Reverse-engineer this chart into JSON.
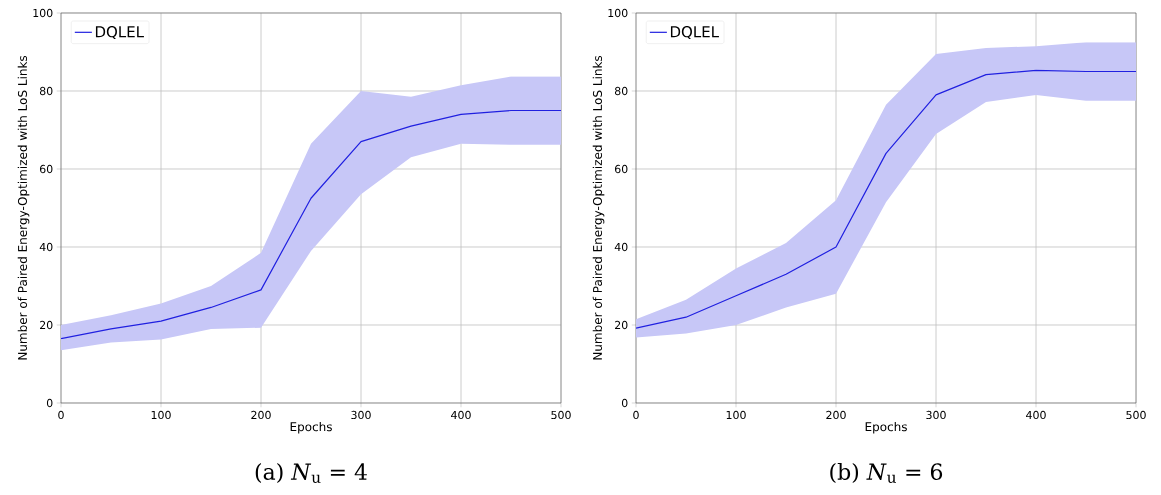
{
  "chart_data": [
    {
      "type": "line",
      "title": "(a) *N*$_{u}$ = 4",
      "xlabel": "Epochs",
      "ylabel": "Number of Paired Energy-Optimized with LoS Links",
      "x": [
        0,
        50,
        100,
        150,
        200,
        250,
        300,
        350,
        400,
        450,
        500
      ],
      "series": [
        {
          "name": "DQLEL",
          "color": "#2020e0",
          "values": [
            16.5,
            19,
            21,
            24.5,
            29,
            52.5,
            67,
            71,
            74,
            75,
            75
          ],
          "lower": [
            13.5,
            15.5,
            16.3,
            19,
            19.3,
            39,
            53.5,
            63,
            66.5,
            66.2,
            66.2
          ],
          "upper": [
            20,
            22.5,
            25.5,
            30,
            38.5,
            66.5,
            80,
            78.5,
            81.5,
            83.7,
            83.7
          ]
        }
      ],
      "xlim": [
        0,
        500
      ],
      "ylim": [
        0,
        100
      ],
      "xticks": [
        0,
        100,
        200,
        300,
        400,
        500
      ],
      "yticks": [
        0,
        20,
        40,
        60,
        80,
        100
      ],
      "grid": true,
      "legend": "top left"
    },
    {
      "type": "line",
      "title": "(b) *N*$_{u}$ = 6",
      "xlabel": "Epochs",
      "ylabel": "Number of Paired Energy-Optimized with LoS Links",
      "x": [
        0,
        50,
        100,
        150,
        200,
        250,
        300,
        350,
        400,
        450,
        500
      ],
      "series": [
        {
          "name": "DQLEL",
          "color": "#2020e0",
          "values": [
            19.2,
            22,
            27.5,
            33,
            40,
            64,
            79,
            84.2,
            85.3,
            85,
            85
          ],
          "lower": [
            16.8,
            17.8,
            20,
            24.5,
            28,
            51.5,
            69,
            77.2,
            79,
            77.5,
            77.5
          ],
          "upper": [
            21.5,
            26.5,
            34.5,
            41,
            52,
            76.5,
            89.5,
            91,
            91.5,
            92.5,
            92.5
          ]
        }
      ],
      "xlim": [
        0,
        500
      ],
      "ylim": [
        0,
        100
      ],
      "xticks": [
        0,
        100,
        200,
        300,
        400,
        500
      ],
      "yticks": [
        0,
        20,
        40,
        60,
        80,
        100
      ],
      "grid": true,
      "legend": "top left"
    }
  ]
}
